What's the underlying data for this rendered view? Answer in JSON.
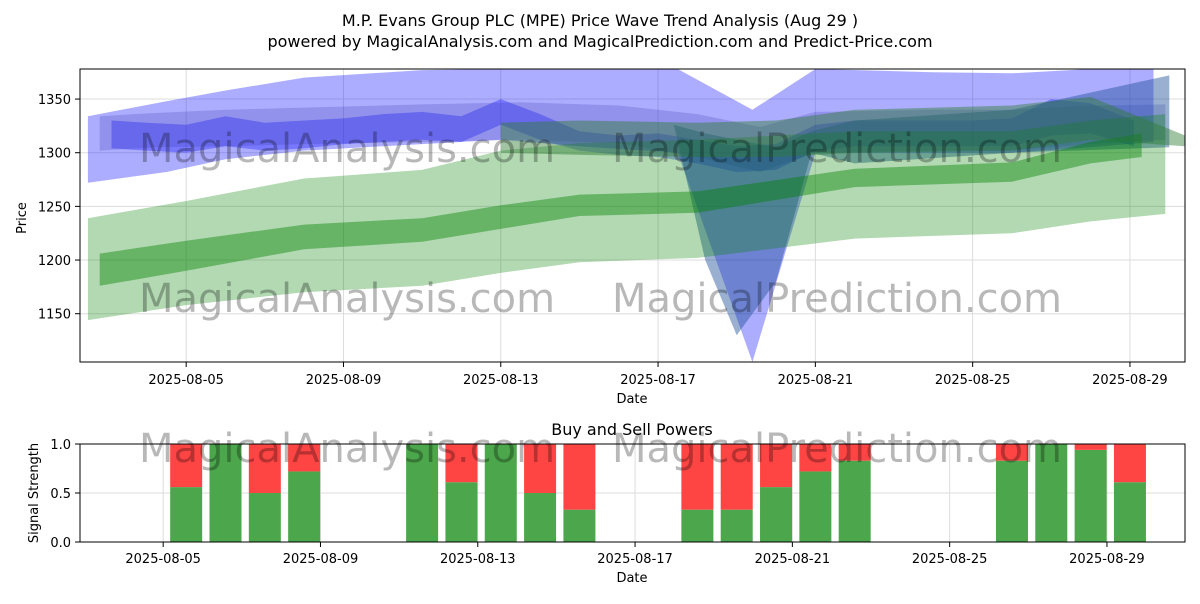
{
  "page": {
    "title": "M.P. Evans Group PLC (MPE) Price Wave Trend Analysis (Aug 29 )",
    "subtitle": "powered by MagicalAnalysis.com and MagicalPrediction.com and Predict-Price.com",
    "watermarks": [
      "MagicalAnalysis.com",
      "MagicalPrediction.com"
    ]
  },
  "colors": {
    "blue_band": "#0000ff",
    "green_band": "#008000",
    "buy": "#4ca64c",
    "sell": "#ff4444",
    "grid": "#dddddd"
  },
  "chart_data": [
    {
      "type": "area",
      "title": "",
      "xlabel": "Date",
      "ylabel": "Price",
      "x_ticks": [
        "2025-08-05",
        "2025-08-09",
        "2025-08-13",
        "2025-08-17",
        "2025-08-21",
        "2025-08-25",
        "2025-08-29"
      ],
      "y_ticks": [
        1150,
        1200,
        1250,
        1300,
        1350
      ],
      "xlim": [
        "2025-08-02.3",
        "2025-08-30.4"
      ],
      "ylim": [
        1105,
        1378
      ],
      "grid": true,
      "series": [
        {
          "color": "blue",
          "kind": "outer-band",
          "x": [
            "2025-08-02.5",
            "2025-08-04.5",
            "2025-08-06",
            "2025-08-08",
            "2025-08-11",
            "2025-08-13",
            "2025-08-15",
            "2025-08-17.5",
            "2025-08-19.4",
            "2025-08-21",
            "2025-08-24",
            "2025-08-26",
            "2025-08-28",
            "2025-08-29.6"
          ],
          "upper": [
            1334,
            1348,
            1358,
            1370,
            1377,
            1378,
            1378,
            1378,
            1340,
            1378,
            1375,
            1374,
            1378,
            1378
          ],
          "lower": [
            1272,
            1282,
            1294,
            1302,
            1308,
            1312,
            1306,
            1300,
            1104,
            1300,
            1300,
            1300,
            1305,
            1310
          ]
        },
        {
          "color": "blue",
          "kind": "core-band",
          "x": [
            "2025-08-03.1",
            "2025-08-04",
            "2025-08-05",
            "2025-08-06",
            "2025-08-07",
            "2025-08-08",
            "2025-08-09",
            "2025-08-10",
            "2025-08-11",
            "2025-08-12",
            "2025-08-13",
            "2025-08-14",
            "2025-08-15",
            "2025-08-16",
            "2025-08-17",
            "2025-08-18",
            "2025-08-19",
            "2025-08-20",
            "2025-08-21",
            "2025-08-22",
            "2025-08-23",
            "2025-08-24",
            "2025-08-25",
            "2025-08-26",
            "2025-08-27",
            "2025-08-28",
            "2025-08-29.1"
          ],
          "upper": [
            1330,
            1328,
            1326,
            1334,
            1328,
            1330,
            1332,
            1336,
            1338,
            1334,
            1350,
            1336,
            1320,
            1316,
            1318,
            1312,
            1306,
            1308,
            1326,
            1330,
            1330,
            1330,
            1330,
            1332,
            1350,
            1346,
            1330
          ],
          "lower": [
            1304,
            1302,
            1300,
            1306,
            1302,
            1304,
            1308,
            1310,
            1312,
            1310,
            1326,
            1312,
            1302,
            1298,
            1296,
            1290,
            1282,
            1284,
            1302,
            1306,
            1306,
            1306,
            1306,
            1306,
            1316,
            1318,
            1306
          ]
        },
        {
          "color": "blue",
          "kind": "dark-band",
          "x": [
            "2025-08-02.8",
            "2025-08-04.2",
            "2025-08-06",
            "2025-08-08",
            "2025-08-11",
            "2025-08-13.5",
            "2025-08-16",
            "2025-08-18",
            "2025-08-19.6",
            "2025-08-21",
            "2025-08-24",
            "2025-08-26",
            "2025-08-28",
            "2025-08-29.9"
          ],
          "upper": [
            1334,
            1337,
            1340,
            1342,
            1345,
            1347,
            1344,
            1336,
            1324,
            1338,
            1340,
            1340,
            1344,
            1345
          ],
          "lower": [
            1302,
            1305,
            1306,
            1308,
            1310,
            1312,
            1309,
            1296,
            1282,
            1300,
            1302,
            1302,
            1308,
            1312
          ]
        },
        {
          "color": "blue",
          "kind": "sweep-band",
          "x": [
            "2025-08-17.4",
            "2025-08-18.2",
            "2025-08-19",
            "2025-08-20",
            "2025-08-20.9",
            "2025-08-22",
            "2025-08-26",
            "2025-08-30"
          ],
          "upper": [
            1326,
            1318,
            1312,
            1305,
            1320,
            1330,
            1340,
            1372
          ],
          "lower": [
            1326,
            1200,
            1130,
            1180,
            1300,
            1290,
            1300,
            1305
          ]
        },
        {
          "color": "green",
          "kind": "outer-band",
          "x": [
            "2025-08-02.5",
            "2025-08-05",
            "2025-08-08",
            "2025-08-11",
            "2025-08-13",
            "2025-08-15",
            "2025-08-18",
            "2025-08-22",
            "2025-08-26",
            "2025-08-28",
            "2025-08-29.9"
          ],
          "upper": [
            1239,
            1255,
            1276,
            1284,
            1302,
            1309,
            1312,
            1320,
            1320,
            1330,
            1336
          ],
          "lower": [
            1144,
            1158,
            1170,
            1176,
            1188,
            1198,
            1202,
            1220,
            1225,
            1236,
            1243
          ]
        },
        {
          "color": "green",
          "kind": "mid-band",
          "x": [
            "2025-08-02.8",
            "2025-08-05",
            "2025-08-08",
            "2025-08-11",
            "2025-08-13",
            "2025-08-15",
            "2025-08-18",
            "2025-08-22",
            "2025-08-26",
            "2025-08-28",
            "2025-08-29.3"
          ],
          "upper": [
            1206,
            1218,
            1233,
            1239,
            1251,
            1261,
            1264,
            1285,
            1291,
            1310,
            1318
          ],
          "lower": [
            1176,
            1190,
            1210,
            1217,
            1229,
            1241,
            1244,
            1268,
            1273,
            1290,
            1296
          ]
        },
        {
          "color": "green",
          "kind": "upper-band",
          "x": [
            "2025-08-13",
            "2025-08-15",
            "2025-08-18",
            "2025-08-20",
            "2025-08-22",
            "2025-08-26",
            "2025-08-28",
            "2025-08-30.4"
          ],
          "upper": [
            1328,
            1330,
            1328,
            1330,
            1340,
            1344,
            1352,
            1316
          ],
          "lower": [
            1300,
            1298,
            1296,
            1296,
            1300,
            1302,
            1312,
            1306
          ]
        }
      ]
    },
    {
      "type": "bar",
      "title": "Buy and Sell Powers",
      "xlabel": "Date",
      "ylabel": "Signal Strength",
      "x_ticks": [
        "2025-08-05",
        "2025-08-09",
        "2025-08-13",
        "2025-08-17",
        "2025-08-21",
        "2025-08-25",
        "2025-08-29"
      ],
      "y_ticks": [
        0.0,
        0.5,
        1.0
      ],
      "ylim": [
        0,
        1
      ],
      "grid": true,
      "dates": [
        "2025-08-05",
        "2025-08-06",
        "2025-08-07",
        "2025-08-08",
        "2025-08-11",
        "2025-08-12",
        "2025-08-13",
        "2025-08-14",
        "2025-08-15",
        "2025-08-18",
        "2025-08-19",
        "2025-08-20",
        "2025-08-21",
        "2025-08-22",
        "2025-08-26",
        "2025-08-27",
        "2025-08-28",
        "2025-08-29"
      ],
      "buy": [
        0.56,
        1.0,
        0.5,
        0.72,
        1.0,
        0.61,
        1.0,
        0.5,
        0.33,
        0.33,
        0.33,
        0.56,
        0.72,
        0.83,
        0.83,
        1.0,
        0.94,
        0.61
      ],
      "sell": [
        0.44,
        0.0,
        0.5,
        0.28,
        0.0,
        0.39,
        0.0,
        0.5,
        0.67,
        0.67,
        0.67,
        0.44,
        0.28,
        0.17,
        0.17,
        0.0,
        0.06,
        0.39
      ]
    }
  ]
}
